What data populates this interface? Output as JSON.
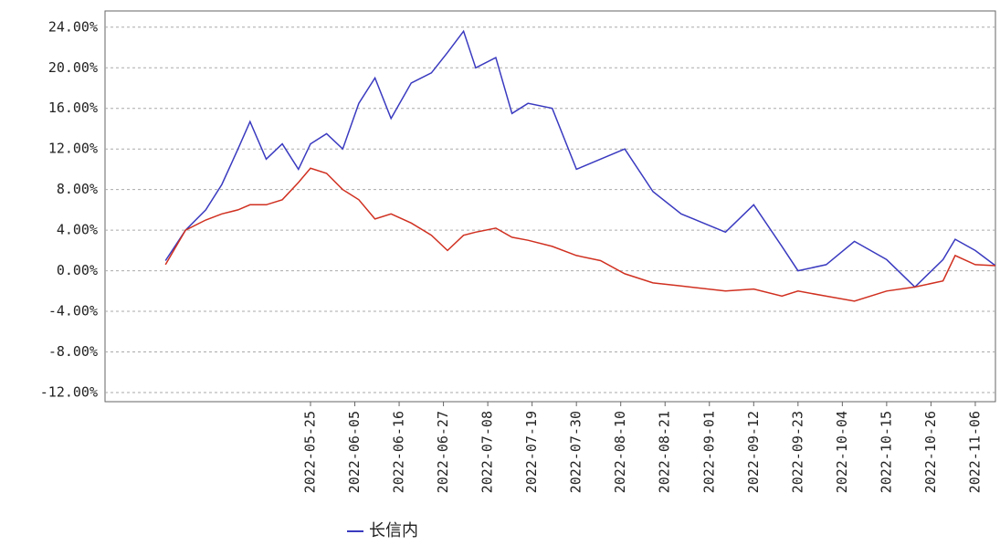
{
  "chart_data": {
    "type": "line",
    "x": [
      "2022-04-19",
      "2022-04-24",
      "2022-04-29",
      "2022-05-03",
      "2022-05-07",
      "2022-05-10",
      "2022-05-14",
      "2022-05-18",
      "2022-05-22",
      "2022-05-25",
      "2022-05-29",
      "2022-06-02",
      "2022-06-06",
      "2022-06-10",
      "2022-06-14",
      "2022-06-19",
      "2022-06-24",
      "2022-06-28",
      "2022-07-02",
      "2022-07-05",
      "2022-07-10",
      "2022-07-14",
      "2022-07-18",
      "2022-07-24",
      "2022-07-30",
      "2022-08-05",
      "2022-08-11",
      "2022-08-18",
      "2022-08-25",
      "2022-09-05",
      "2022-09-12",
      "2022-09-19",
      "2022-09-23",
      "2022-09-30",
      "2022-10-07",
      "2022-10-15",
      "2022-10-22",
      "2022-10-29",
      "2022-11-01",
      "2022-11-06",
      "2022-11-11"
    ],
    "series": [
      {
        "name": "长信内",
        "color": "#3a3ac0",
        "values": [
          1.0,
          4.0,
          6.0,
          8.5,
          12.0,
          14.7,
          11.0,
          12.5,
          10.0,
          12.5,
          13.5,
          12.0,
          16.5,
          19.0,
          15.0,
          18.5,
          19.5,
          21.5,
          23.6,
          20.0,
          21.0,
          15.5,
          16.5,
          16.0,
          10.0,
          11.0,
          12.0,
          7.8,
          5.6,
          3.8,
          6.5,
          2.4,
          0.0,
          0.6,
          2.9,
          1.1,
          -1.6,
          1.1,
          3.1,
          2.0,
          0.5
        ]
      },
      {
        "color": "#d03020",
        "values": [
          0.6,
          4.0,
          5.0,
          5.6,
          6.0,
          6.5,
          6.5,
          7.0,
          8.7,
          10.1,
          9.6,
          8.0,
          7.0,
          5.1,
          5.6,
          4.7,
          3.5,
          2.0,
          3.5,
          3.8,
          4.2,
          3.3,
          3.0,
          2.4,
          1.5,
          1.0,
          -0.3,
          -1.2,
          -1.5,
          -2.0,
          -1.8,
          -2.5,
          -2.0,
          -2.5,
          -3.0,
          -2.0,
          -1.6,
          -1.0,
          1.5,
          0.6,
          0.5
        ]
      }
    ],
    "xlim": [
      "2022-04-04",
      "2022-11-11"
    ],
    "xticks": [
      "2022-05-25",
      "2022-06-05",
      "2022-06-16",
      "2022-06-27",
      "2022-07-08",
      "2022-07-19",
      "2022-07-30",
      "2022-08-10",
      "2022-08-21",
      "2022-09-01",
      "2022-09-12",
      "2022-09-23",
      "2022-10-04",
      "2022-10-15",
      "2022-10-26",
      "2022-11-06"
    ],
    "ylim": [
      -12.9,
      25.6
    ],
    "yticks": [
      {
        "value": -12,
        "label": "-12.00%"
      },
      {
        "value": -8,
        "label": "-8.00%"
      },
      {
        "value": -4,
        "label": "-4.00%"
      },
      {
        "value": 0,
        "label": "0.00%"
      },
      {
        "value": 4,
        "label": "4.00%"
      },
      {
        "value": 8,
        "label": "8.00%"
      },
      {
        "value": 12,
        "label": "12.00%"
      },
      {
        "value": 16,
        "label": "16.00%"
      },
      {
        "value": 20,
        "label": "20.00%"
      },
      {
        "value": 24,
        "label": "24.00%"
      }
    ],
    "grid": true
  }
}
